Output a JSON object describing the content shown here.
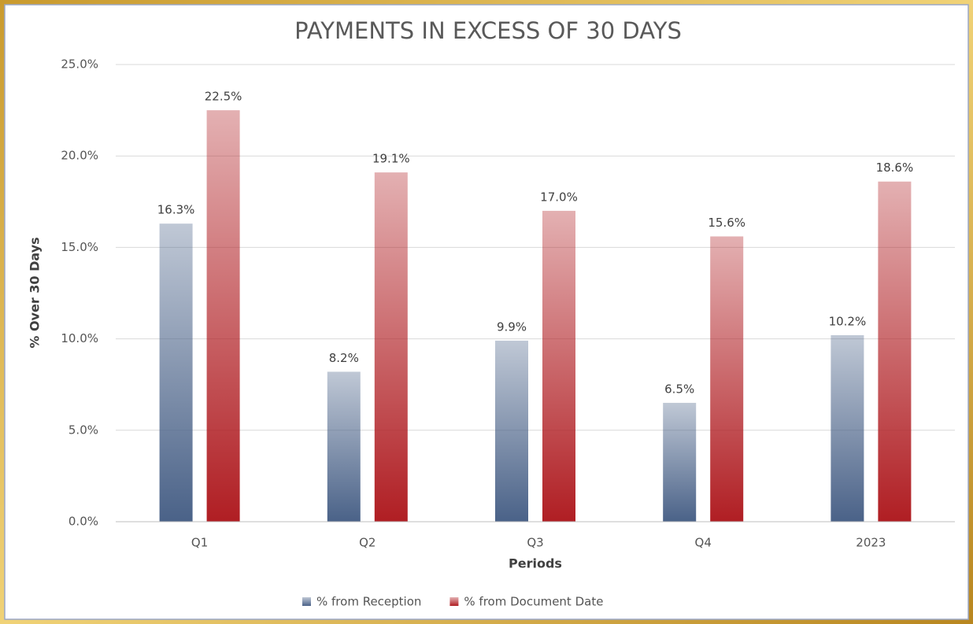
{
  "chart_data": {
    "type": "bar",
    "title": "PAYMENTS IN EXCESS OF 30 DAYS",
    "x_label": "Periods",
    "y_label": "% Over 30 Days",
    "categories": [
      "Q1",
      "Q2",
      "Q3",
      "Q4",
      "2023"
    ],
    "series": [
      {
        "name": "% from Reception",
        "color": "#4a6288",
        "values": [
          16.3,
          8.2,
          9.9,
          6.5,
          10.2
        ],
        "value_labels": [
          "16.3%",
          "8.2%",
          "9.9%",
          "6.5%",
          "10.2%"
        ]
      },
      {
        "name": "% from Document Date",
        "color": "#b01e23",
        "values": [
          22.5,
          19.1,
          17.0,
          15.6,
          18.6
        ],
        "value_labels": [
          "22.5%",
          "19.1%",
          "17.0%",
          "15.6%",
          "18.6%"
        ]
      }
    ],
    "ylim": [
      0,
      25
    ],
    "yticks": [
      {
        "value": 0,
        "label": "0.0%"
      },
      {
        "value": 5,
        "label": "5.0%"
      },
      {
        "value": 10,
        "label": "10.0%"
      },
      {
        "value": 15,
        "label": "15.0%"
      },
      {
        "value": 20,
        "label": "20.0%"
      },
      {
        "value": 25,
        "label": "25.0%"
      }
    ],
    "grid": true,
    "legend": "bottom"
  }
}
